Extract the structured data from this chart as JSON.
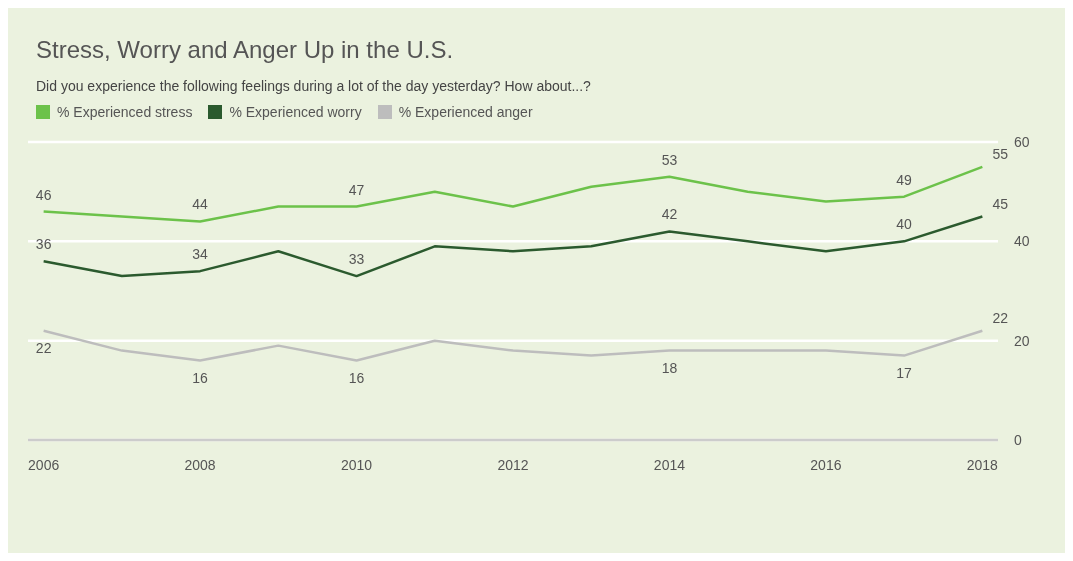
{
  "chart_data": {
    "type": "line",
    "title": "Stress, Worry and Anger Up in the U.S.",
    "subtitle": "Did you experience the following feelings during a lot of the day yesterday? How about...?",
    "x": [
      2006,
      2007,
      2008,
      2009,
      2010,
      2011,
      2012,
      2013,
      2014,
      2015,
      2016,
      2017,
      2018
    ],
    "series": [
      {
        "name": "% Experienced stress",
        "color": "#6cc24a",
        "values": [
          46,
          45,
          44,
          47,
          47,
          50,
          47,
          51,
          53,
          50,
          48,
          49,
          55
        ],
        "value_labels": [
          "46",
          null,
          "44",
          null,
          "47",
          null,
          null,
          null,
          "53",
          null,
          null,
          "49",
          "55"
        ]
      },
      {
        "name": "% Experienced worry",
        "color": "#2b5a2e",
        "values": [
          36,
          33,
          34,
          38,
          33,
          39,
          38,
          39,
          42,
          40,
          38,
          40,
          45
        ],
        "value_labels": [
          "36",
          null,
          "34",
          null,
          "33",
          null,
          null,
          null,
          "42",
          null,
          null,
          "40",
          "45"
        ]
      },
      {
        "name": "% Experienced anger",
        "color": "#bdbdbd",
        "values": [
          22,
          18,
          16,
          19,
          16,
          20,
          18,
          17,
          18,
          18,
          18,
          17,
          22
        ],
        "value_labels": [
          "22",
          null,
          "16",
          null,
          "16",
          null,
          null,
          null,
          "18",
          null,
          null,
          "17",
          "22"
        ]
      }
    ],
    "xlim": [
      2005.8,
      2018.2
    ],
    "xticks": [
      2006,
      2008,
      2010,
      2012,
      2014,
      2016,
      2018
    ],
    "ylim": [
      0,
      60
    ],
    "yticks": [
      0,
      20,
      40,
      60
    ],
    "grid": "y",
    "legend": "top left",
    "marker": "none",
    "line_style": "solid"
  }
}
